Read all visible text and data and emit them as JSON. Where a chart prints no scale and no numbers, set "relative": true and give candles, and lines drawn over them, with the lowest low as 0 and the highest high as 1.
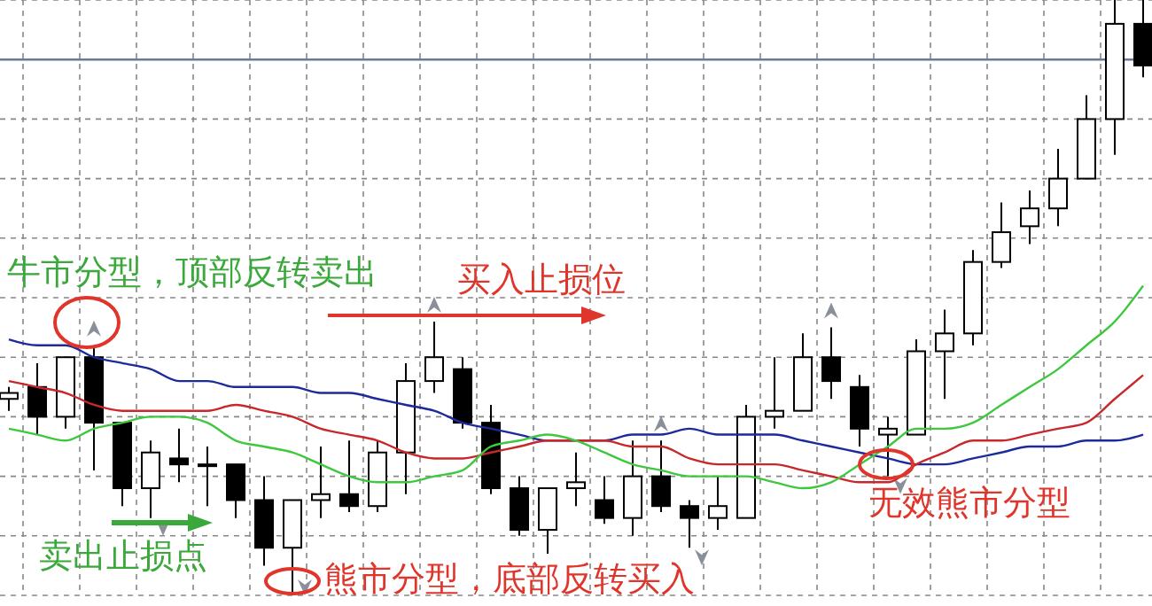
{
  "chart_data": {
    "type": "candlestick",
    "relative": true,
    "grid": true,
    "categories": [
      null,
      null,
      null,
      null,
      null,
      null,
      null,
      null,
      null,
      null,
      null,
      null,
      null,
      null,
      null,
      null,
      null,
      null,
      null,
      null,
      null,
      null,
      null,
      null,
      null,
      null,
      null,
      null,
      null,
      null,
      null,
      null,
      null,
      null,
      null,
      null,
      null,
      null,
      null,
      null,
      null
    ],
    "ohlc": [
      [
        0.33,
        0.35,
        0.31,
        0.34
      ],
      [
        0.35,
        0.39,
        0.27,
        0.3
      ],
      [
        0.3,
        0.4,
        0.28,
        0.4
      ],
      [
        0.4,
        0.42,
        0.21,
        0.29
      ],
      [
        0.29,
        0.29,
        0.15,
        0.18
      ],
      [
        0.18,
        0.26,
        0.13,
        0.24
      ],
      [
        0.23,
        0.28,
        0.19,
        0.22
      ],
      [
        0.22,
        0.25,
        0.15,
        0.22
      ],
      [
        0.22,
        0.22,
        0.13,
        0.16
      ],
      [
        0.16,
        0.2,
        0.05,
        0.08
      ],
      [
        0.08,
        0.16,
        0,
        0.16
      ],
      [
        0.16,
        0.25,
        0.13,
        0.17
      ],
      [
        0.17,
        0.26,
        0.14,
        0.15
      ],
      [
        0.15,
        0.26,
        0.14,
        0.24
      ],
      [
        0.24,
        0.39,
        0.17,
        0.36
      ],
      [
        0.36,
        0.46,
        0.34,
        0.4
      ],
      [
        0.38,
        0.4,
        0.28,
        0.29
      ],
      [
        0.29,
        0.32,
        0.17,
        0.18
      ],
      [
        0.18,
        0.2,
        0.1,
        0.11
      ],
      [
        0.11,
        0.18,
        0.07,
        0.18
      ],
      [
        0.18,
        0.24,
        0.15,
        0.19
      ],
      [
        0.16,
        0.2,
        0.12,
        0.13
      ],
      [
        0.13,
        0.26,
        0.1,
        0.2
      ],
      [
        0.2,
        0.26,
        0.14,
        0.15
      ],
      [
        0.15,
        0.16,
        0.08,
        0.13
      ],
      [
        0.13,
        0.2,
        0.11,
        0.15
      ],
      [
        0.13,
        0.32,
        0.13,
        0.3
      ],
      [
        0.3,
        0.4,
        0.28,
        0.31
      ],
      [
        0.31,
        0.44,
        0.31,
        0.4
      ],
      [
        0.4,
        0.45,
        0.33,
        0.36
      ],
      [
        0.35,
        0.37,
        0.25,
        0.28
      ],
      [
        0.27,
        0.3,
        0.2,
        0.28
      ],
      [
        0.27,
        0.43,
        0.27,
        0.41
      ],
      [
        0.41,
        0.48,
        0.33,
        0.44
      ],
      [
        0.44,
        0.58,
        0.42,
        0.56
      ],
      [
        0.56,
        0.66,
        0.55,
        0.61
      ],
      [
        0.62,
        0.68,
        0.59,
        0.65
      ],
      [
        0.65,
        0.75,
        0.62,
        0.7
      ],
      [
        0.7,
        0.84,
        0.7,
        0.8
      ],
      [
        0.8,
        1,
        0.74,
        0.96
      ],
      [
        0.96,
        1,
        0.87,
        0.89
      ]
    ],
    "series": [
      {
        "type": "line",
        "color": "#1c2a9c",
        "values": [
          0.43,
          0.42,
          0.42,
          0.4,
          0.39,
          0.38,
          0.36,
          0.36,
          0.35,
          0.35,
          0.35,
          0.34,
          0.34,
          0.33,
          0.32,
          0.31,
          0.29,
          0.28,
          0.27,
          0.26,
          0.26,
          0.26,
          0.27,
          0.27,
          0.28,
          0.27,
          0.27,
          0.27,
          0.26,
          0.25,
          0.24,
          0.23,
          0.22,
          0.22,
          0.23,
          0.24,
          0.25,
          0.25,
          0.26,
          0.26,
          0.27
        ]
      },
      {
        "type": "line",
        "color": "#c8282a",
        "values": [
          0.36,
          0.35,
          0.34,
          0.32,
          0.31,
          0.31,
          0.31,
          0.31,
          0.32,
          0.31,
          0.3,
          0.28,
          0.27,
          0.26,
          0.24,
          0.23,
          0.23,
          0.24,
          0.25,
          0.26,
          0.26,
          0.26,
          0.25,
          0.25,
          0.23,
          0.22,
          0.22,
          0.22,
          0.21,
          0.2,
          0.19,
          0.19,
          0.22,
          0.24,
          0.26,
          0.26,
          0.27,
          0.28,
          0.29,
          0.33,
          0.37
        ]
      },
      {
        "type": "line",
        "color": "#3ec83e",
        "values": [
          0.28,
          0.27,
          0.26,
          0.28,
          0.29,
          0.3,
          0.3,
          0.29,
          0.26,
          0.25,
          0.24,
          0.22,
          0.2,
          0.19,
          0.19,
          0.2,
          0.21,
          0.25,
          0.26,
          0.27,
          0.26,
          0.24,
          0.22,
          0.21,
          0.2,
          0.2,
          0.2,
          0.19,
          0.18,
          0.19,
          0.22,
          0.25,
          0.28,
          0.28,
          0.29,
          0.32,
          0.35,
          0.38,
          0.42,
          0.46,
          0.52
        ]
      }
    ],
    "ref_lines": [
      {
        "axis": "y",
        "value": 0.9,
        "color": "#6a7a9a"
      }
    ],
    "annotations": [
      "牛市分型，顶部反转卖出",
      "买入止损位",
      "卖出止损点",
      "熊市分型，底部反转买入",
      "无效熊市分型"
    ]
  }
}
